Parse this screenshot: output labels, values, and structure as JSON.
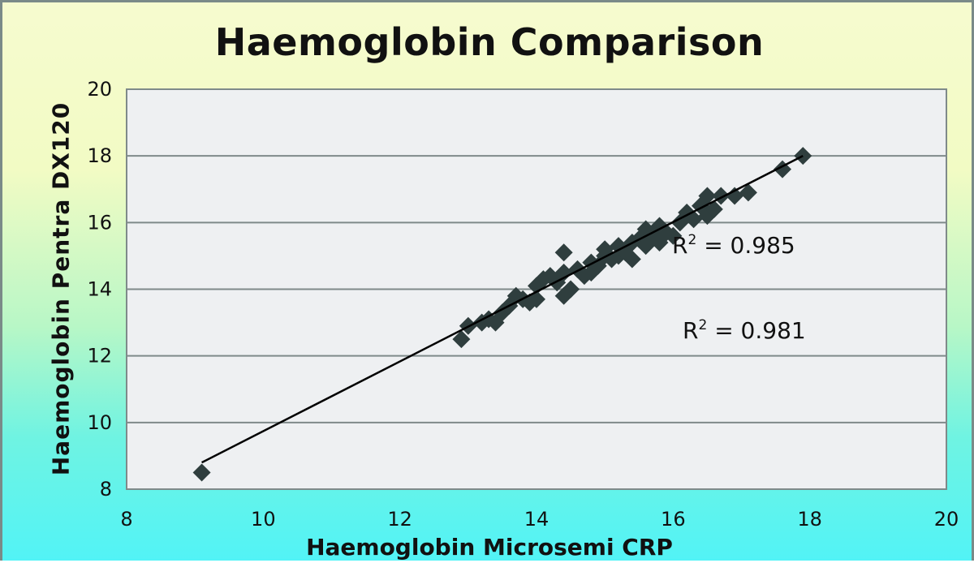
{
  "chart_data": {
    "type": "scatter",
    "title": "Haemoglobin Comparison",
    "xlabel": "Haemoglobin Microsemi CRP",
    "ylabel": "Haemoglobin Pentra DX120",
    "xlim": [
      8,
      20
    ],
    "ylim": [
      8,
      20
    ],
    "x_ticks": [
      "8",
      "10",
      "12",
      "14",
      "16",
      "18",
      "20"
    ],
    "y_ticks": [
      "8",
      "10",
      "12",
      "14",
      "16",
      "18",
      "20"
    ],
    "grid": "horizontal",
    "legend": "none",
    "marker": "diamond",
    "marker_color": "#2f3e3e",
    "annotations": [
      {
        "text": "R² = 0.985",
        "r2": 0.985
      },
      {
        "text": "R² = 0.981",
        "r2": 0.981
      }
    ],
    "trendline": {
      "x": [
        9.1,
        17.9
      ],
      "y": [
        8.8,
        18.0
      ]
    },
    "series": [
      {
        "name": "Haemoglobin",
        "points": [
          [
            9.1,
            8.5
          ],
          [
            12.9,
            12.5
          ],
          [
            13.0,
            12.9
          ],
          [
            13.2,
            13.0
          ],
          [
            13.3,
            13.1
          ],
          [
            13.4,
            13.0
          ],
          [
            13.5,
            13.3
          ],
          [
            13.6,
            13.5
          ],
          [
            13.7,
            13.8
          ],
          [
            13.8,
            13.7
          ],
          [
            13.9,
            13.6
          ],
          [
            14.0,
            13.7
          ],
          [
            14.0,
            14.1
          ],
          [
            14.1,
            14.3
          ],
          [
            14.2,
            14.4
          ],
          [
            14.3,
            14.2
          ],
          [
            14.4,
            14.5
          ],
          [
            14.4,
            15.1
          ],
          [
            14.4,
            13.8
          ],
          [
            14.5,
            14.0
          ],
          [
            14.6,
            14.6
          ],
          [
            14.7,
            14.4
          ],
          [
            14.8,
            14.8
          ],
          [
            14.8,
            14.5
          ],
          [
            14.9,
            14.7
          ],
          [
            15.0,
            15.0
          ],
          [
            15.0,
            15.2
          ],
          [
            15.1,
            14.9
          ],
          [
            15.2,
            15.3
          ],
          [
            15.2,
            15.0
          ],
          [
            15.3,
            15.1
          ],
          [
            15.4,
            15.4
          ],
          [
            15.4,
            14.9
          ],
          [
            15.5,
            15.5
          ],
          [
            15.6,
            15.3
          ],
          [
            15.6,
            15.8
          ],
          [
            15.7,
            15.6
          ],
          [
            15.8,
            15.9
          ],
          [
            15.8,
            15.4
          ],
          [
            15.9,
            15.7
          ],
          [
            16.0,
            15.6
          ],
          [
            16.1,
            16.0
          ],
          [
            16.2,
            16.3
          ],
          [
            16.3,
            16.1
          ],
          [
            16.4,
            16.5
          ],
          [
            16.5,
            16.8
          ],
          [
            16.5,
            16.2
          ],
          [
            16.6,
            16.4
          ],
          [
            16.7,
            16.8
          ],
          [
            16.9,
            16.8
          ],
          [
            17.1,
            16.9
          ],
          [
            17.6,
            17.6
          ],
          [
            17.9,
            18.0
          ]
        ]
      }
    ]
  }
}
